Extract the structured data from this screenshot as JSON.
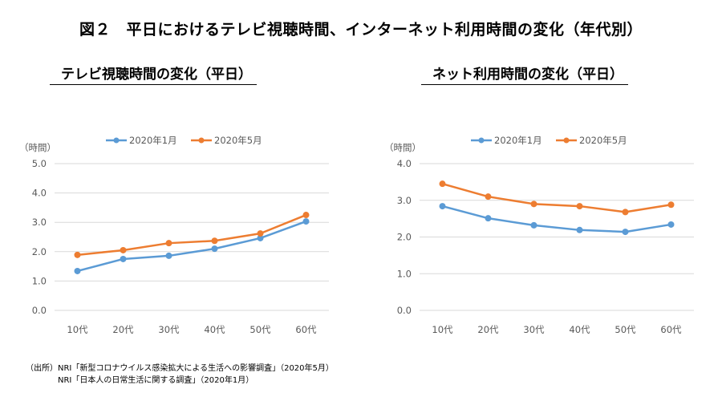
{
  "figure_title": "図２　平日におけるテレビ視聴時間、インターネット利用時間の変化（年代別）",
  "source": {
    "label": "（出所）",
    "lines": [
      "NRI「新型コロナウイルス感染拡大による生活への影響調査」（2020年5月）",
      "NRI「日本人の日常生活に関する調査」（2020年1月）"
    ]
  },
  "colors": {
    "jan": "#5B9BD5",
    "may": "#ED7D31",
    "grid": "#D9D9D9"
  },
  "chart_data": [
    {
      "type": "line",
      "title": "テレビ視聴時間の変化（平日）",
      "ylabel": "（時間）",
      "xlabel": "",
      "categories": [
        "10代",
        "20代",
        "30代",
        "40代",
        "50代",
        "60代"
      ],
      "ylim": [
        0,
        5
      ],
      "yticks": [
        "0.0",
        "1.0",
        "2.0",
        "3.0",
        "4.0",
        "5.0"
      ],
      "grid": true,
      "legend": "top",
      "series": [
        {
          "name": "2020年1月",
          "color": "#5B9BD5",
          "values": [
            1.34,
            1.75,
            1.86,
            2.1,
            2.46,
            3.03
          ]
        },
        {
          "name": "2020年5月",
          "color": "#ED7D31",
          "values": [
            1.89,
            2.05,
            2.29,
            2.37,
            2.62,
            3.25
          ]
        }
      ]
    },
    {
      "type": "line",
      "title": "ネット利用時間の変化（平日）",
      "ylabel": "（時間）",
      "xlabel": "",
      "categories": [
        "10代",
        "20代",
        "30代",
        "40代",
        "50代",
        "60代"
      ],
      "ylim": [
        0,
        4
      ],
      "yticks": [
        "0.0",
        "1.0",
        "2.0",
        "3.0",
        "4.0"
      ],
      "grid": true,
      "legend": "top",
      "series": [
        {
          "name": "2020年1月",
          "color": "#5B9BD5",
          "values": [
            2.84,
            2.51,
            2.32,
            2.19,
            2.14,
            2.34
          ]
        },
        {
          "name": "2020年5月",
          "color": "#ED7D31",
          "values": [
            3.45,
            3.1,
            2.9,
            2.84,
            2.68,
            2.88
          ]
        }
      ]
    }
  ]
}
